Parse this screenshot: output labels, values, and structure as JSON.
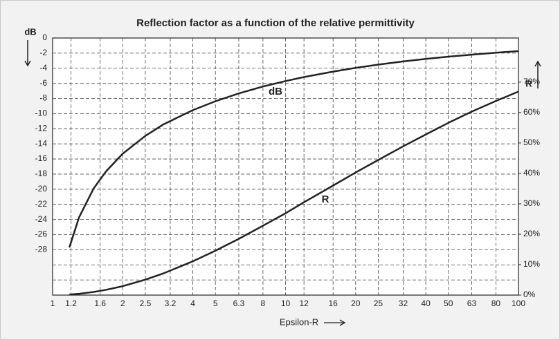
{
  "chart_data": {
    "type": "line",
    "title": "Reflection factor as a function of the relative permittivity",
    "x_label": "Epsilon-R",
    "y_label": "dB",
    "y2_label": "R",
    "x_scale": "log",
    "grid": true,
    "xlim": [
      1,
      100
    ],
    "xticks": [
      1,
      1.2,
      1.6,
      2,
      2.5,
      3.2,
      4,
      5,
      6.3,
      8,
      10,
      12,
      16,
      20,
      25,
      32,
      40,
      50,
      63,
      80,
      100
    ],
    "ylim": [
      -34,
      0
    ],
    "yticks": [
      0,
      -2,
      -4,
      -6,
      -8,
      -10,
      -12,
      -14,
      -16,
      -18,
      -20,
      -22,
      -24,
      -26,
      -28
    ],
    "y_minor_ticks": [
      -30,
      -32
    ],
    "y2lim": [
      0,
      84.5
    ],
    "y2ticks": [
      {
        "value": 0,
        "label": "0%"
      },
      {
        "value": 10,
        "label": "10%"
      },
      {
        "value": 20,
        "label": "20%"
      },
      {
        "value": 30,
        "label": "30%"
      },
      {
        "value": 40,
        "label": "40%"
      },
      {
        "value": 50,
        "label": "50%"
      },
      {
        "value": 60,
        "label": "60%"
      },
      {
        "value": 70,
        "label": "70%"
      }
    ],
    "x": [
      1.18,
      1.3,
      1.5,
      1.7,
      2,
      2.5,
      3,
      4,
      5,
      6.3,
      8,
      10,
      12,
      16,
      20,
      25,
      32,
      40,
      50,
      63,
      80,
      100
    ],
    "series": [
      {
        "name": "dB",
        "color": "#222222",
        "values": [
          -27.7,
          -23.7,
          -19.9,
          -17.6,
          -15.3,
          -12.95,
          -11.4,
          -9.54,
          -8.36,
          -7.33,
          -6.42,
          -5.69,
          -5.16,
          -4.44,
          -3.95,
          -3.52,
          -3.1,
          -2.77,
          -2.47,
          -2.2,
          -1.95,
          -1.74
        ]
      },
      {
        "name": "R",
        "color": "#222222",
        "axis": "y2",
        "values": [
          0.17,
          0.43,
          1.02,
          1.74,
          2.94,
          5.07,
          7.18,
          11.1,
          14.6,
          18.5,
          22.8,
          26.9,
          30.5,
          36,
          40.3,
          44.4,
          48.9,
          52.8,
          56.6,
          60.3,
          63.8,
          66.9
        ]
      }
    ]
  }
}
